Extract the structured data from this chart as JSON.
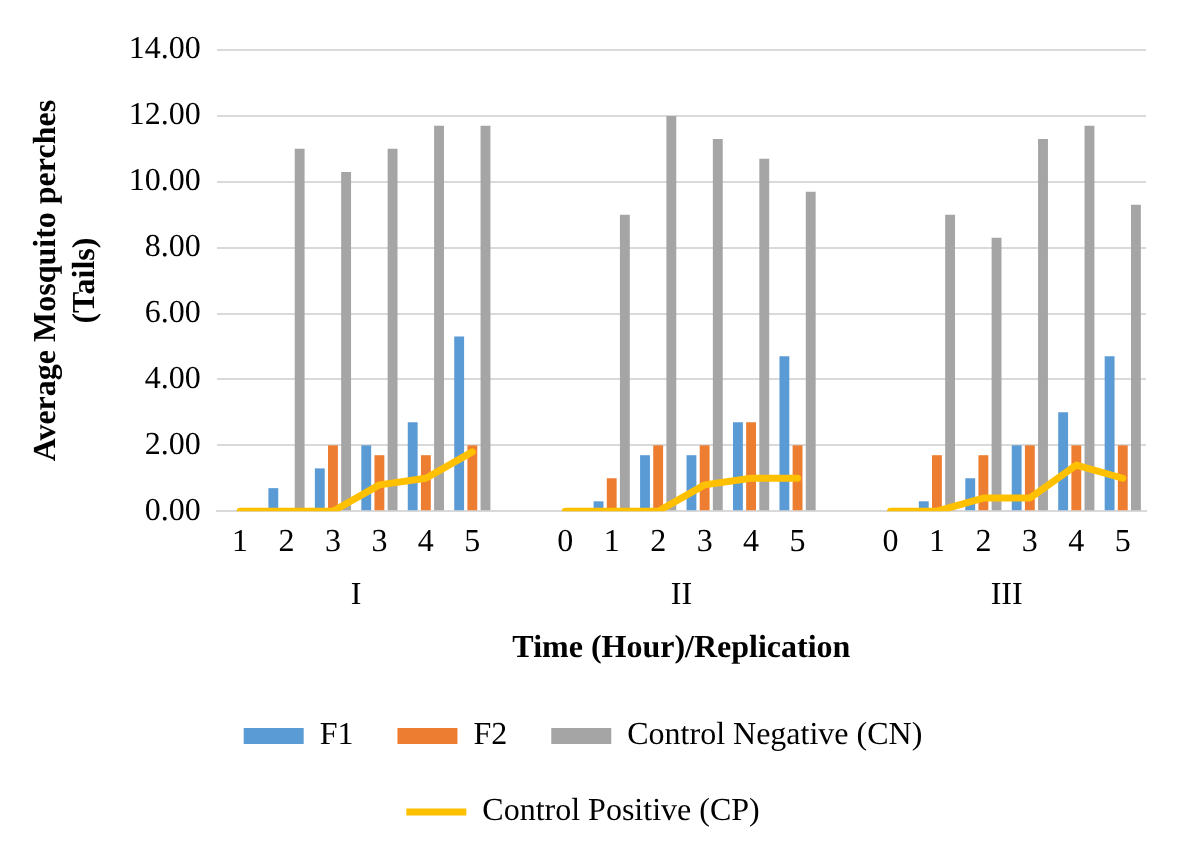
{
  "chart_data": {
    "type": "bar",
    "xlabel": "Time (Hour)/Replication",
    "ylabel": "Average Mosquito perches (Tails)",
    "categories": [
      "1",
      "2",
      "3",
      "3",
      "4",
      "5",
      null,
      "0",
      "1",
      "2",
      "3",
      "4",
      "5",
      null,
      "0",
      "1",
      "2",
      "3",
      "4",
      "5"
    ],
    "series": [
      {
        "name": "F1",
        "color": "#5b9bd5",
        "values": [
          0,
          0.7,
          1.3,
          2,
          2.7,
          5.3,
          null,
          0,
          0.3,
          1.7,
          1.7,
          2.7,
          4.7,
          null,
          0,
          0.3,
          1,
          2,
          3,
          4.7
        ]
      },
      {
        "name": "F2",
        "color": "#ed7d31",
        "values": [
          0,
          0,
          2,
          1.7,
          1.7,
          2,
          null,
          0,
          1,
          2,
          2,
          2.7,
          2,
          null,
          0,
          1.7,
          1.7,
          2,
          2,
          2
        ]
      },
      {
        "name": "Control Negative (CN)",
        "color": "#a5a5a5",
        "values": [
          0,
          11,
          10.3,
          11,
          11.7,
          11.7,
          null,
          0,
          9,
          12,
          11.3,
          10.7,
          9.7,
          null,
          0,
          9,
          8.3,
          11.3,
          11.7,
          9.3
        ]
      },
      {
        "name": "Control Positive (CP)",
        "type": "line",
        "color": "#ffc000",
        "values": [
          0,
          0,
          0,
          0.8,
          1,
          1.8,
          null,
          0,
          0,
          0,
          0.8,
          1,
          1,
          null,
          0,
          0,
          0.4,
          0.4,
          1.4,
          1
        ]
      }
    ],
    "annotations": [
      "I",
      "II",
      "III"
    ],
    "ylim": [
      0,
      14
    ],
    "yticks": [
      {
        "value": 0,
        "label": "0.00"
      },
      {
        "value": 2,
        "label": "2.00"
      },
      {
        "value": 4,
        "label": "4.00"
      },
      {
        "value": 6,
        "label": "6.00"
      },
      {
        "value": 8,
        "label": "8.00"
      },
      {
        "value": 10,
        "label": "10.00"
      },
      {
        "value": 12,
        "label": "12.00"
      },
      {
        "value": 14,
        "label": "14.00"
      }
    ],
    "grid": "y",
    "legend": "bottom",
    "marker": "none"
  }
}
